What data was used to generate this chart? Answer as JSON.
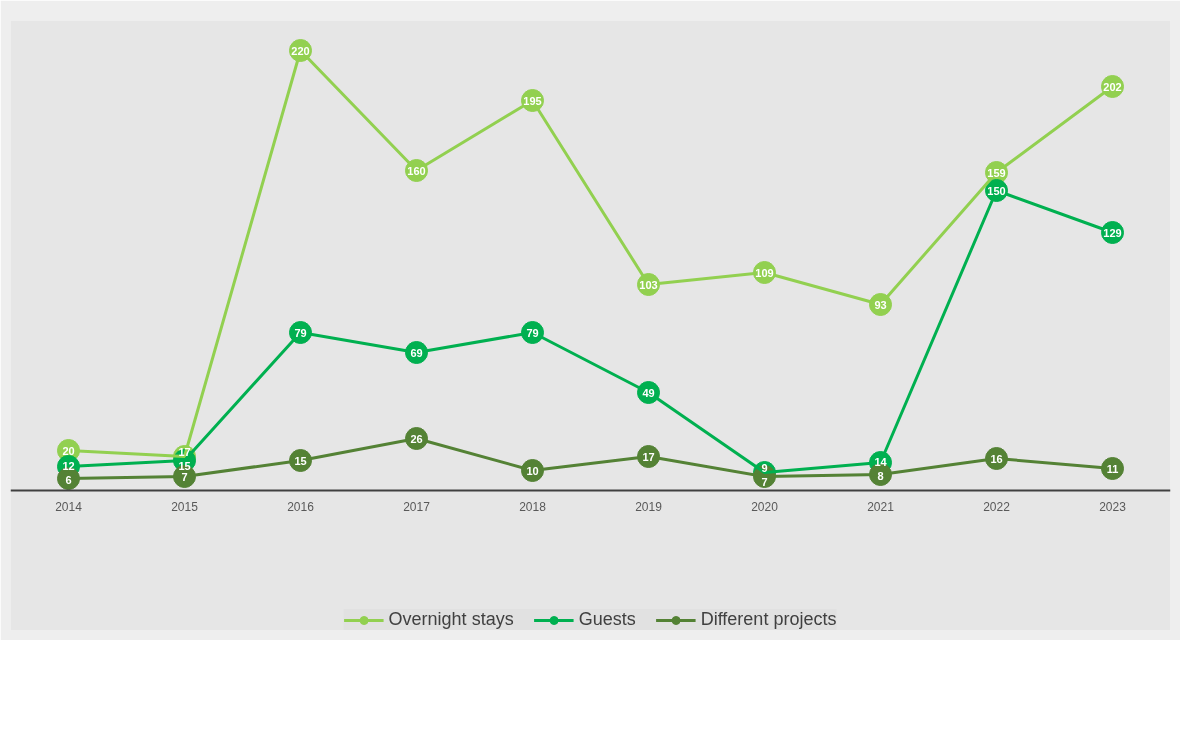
{
  "chart_data": {
    "type": "line",
    "categories": [
      "2014",
      "2015",
      "2016",
      "2017",
      "2018",
      "2019",
      "2020",
      "2021",
      "2022",
      "2023"
    ],
    "series": [
      {
        "name": "Overnight stays",
        "color": "#92d050",
        "values": [
          20,
          17,
          220,
          160,
          195,
          103,
          109,
          93,
          159,
          202
        ]
      },
      {
        "name": "Guests",
        "color": "#00b050",
        "values": [
          12,
          15,
          79,
          69,
          79,
          49,
          9,
          14,
          150,
          129
        ]
      },
      {
        "name": "Different projects",
        "color": "#548235",
        "values": [
          6,
          7,
          15,
          26,
          10,
          17,
          7,
          8,
          16,
          11
        ]
      }
    ],
    "ylim": [
      0,
      235
    ],
    "tick_labels": "x",
    "data_labels": true,
    "marker": "circle",
    "line_style": "solid",
    "grid": false,
    "legend": "bottom"
  }
}
